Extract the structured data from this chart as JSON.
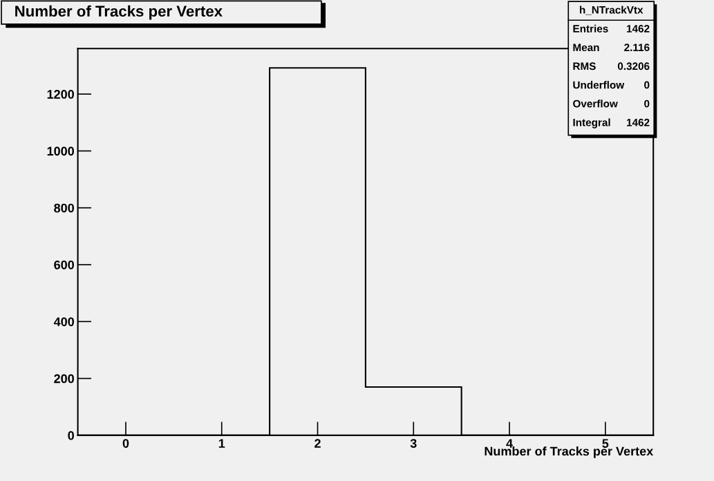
{
  "chart_data": {
    "type": "histogram",
    "title": "Number of Tracks per Vertex",
    "xlabel": "Number of Tracks per Vertex",
    "bins": [
      -0.5,
      0.5,
      1.5,
      2.5,
      3.5,
      4.5,
      5.5
    ],
    "values": [
      0,
      0,
      1292,
      170,
      0,
      0
    ],
    "color": "#000000",
    "xlim": [
      -0.5,
      5.5
    ],
    "xticks": [
      0,
      1,
      2,
      3,
      4,
      5
    ],
    "ylim": [
      0,
      1360
    ],
    "yticks": [
      0,
      200,
      400,
      600,
      800,
      1000,
      1200
    ],
    "grid": false,
    "legend": false,
    "annotations": [
      "h_NTrackVtx",
      "Entries",
      "1462",
      "Mean",
      "2.116",
      "RMS",
      "0.3206",
      "Underflow",
      "0",
      "Overflow",
      "0",
      "Integral",
      "1462"
    ]
  }
}
